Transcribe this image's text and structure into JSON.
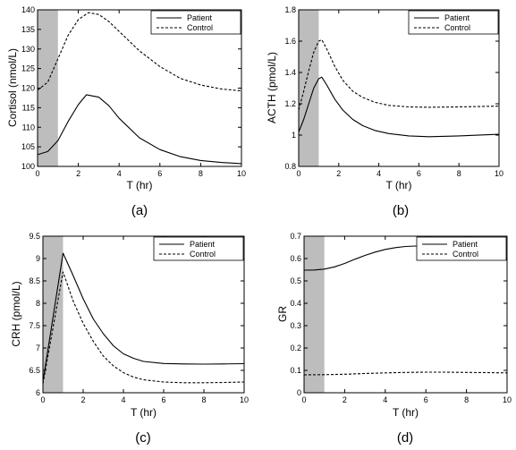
{
  "chart_data": [
    {
      "type": "line",
      "panel_label": "(a)",
      "xlabel": "T (hr)",
      "ylabel": "Cortisol (nmol/L)",
      "xlim": [
        0,
        10
      ],
      "ylim": [
        100,
        140
      ],
      "xticks": [
        0,
        2,
        4,
        6,
        8,
        10
      ],
      "yticks": [
        100,
        105,
        110,
        115,
        120,
        125,
        130,
        135,
        140
      ],
      "shaded_interval": [
        0,
        1
      ],
      "legend": "top-right",
      "grid": false,
      "series": [
        {
          "name": "Patient",
          "style": "solid",
          "x": [
            0,
            0.5,
            1,
            1.5,
            2,
            2.4,
            3,
            3.5,
            4,
            5,
            6,
            7,
            8,
            9,
            10
          ],
          "y": [
            103,
            103.8,
            106.6,
            111.5,
            115.8,
            118.3,
            117.7,
            115.5,
            112.3,
            107.3,
            104.3,
            102.5,
            101.5,
            101,
            100.7
          ]
        },
        {
          "name": "Control",
          "style": "dashed",
          "x": [
            0,
            0.5,
            1,
            1.5,
            2,
            2.5,
            3,
            3.5,
            4,
            5,
            6,
            7,
            8,
            9,
            10
          ],
          "y": [
            119.5,
            121.5,
            127.5,
            133.5,
            137.5,
            139.3,
            138.8,
            137,
            134.5,
            129.5,
            125.5,
            122.5,
            120.8,
            119.8,
            119.3
          ]
        }
      ]
    },
    {
      "type": "line",
      "panel_label": "(b)",
      "xlabel": "T (hr)",
      "ylabel": "ACTH (pmol/L)",
      "xlim": [
        0,
        10
      ],
      "ylim": [
        0.8,
        1.8
      ],
      "xticks": [
        0,
        2,
        4,
        6,
        8,
        10
      ],
      "yticks": [
        "0.8",
        "1",
        "1.2",
        "1.4",
        "1.6",
        "1.8"
      ],
      "shaded_interval": [
        0,
        1
      ],
      "legend": "top-right",
      "grid": false,
      "series": [
        {
          "name": "Patient",
          "style": "solid",
          "x": [
            0,
            0.25,
            0.5,
            0.75,
            1,
            1.15,
            1.4,
            1.8,
            2.2,
            2.7,
            3.2,
            3.8,
            4.5,
            5.5,
            6.5,
            8,
            10
          ],
          "y": [
            1.02,
            1.1,
            1.2,
            1.3,
            1.36,
            1.37,
            1.32,
            1.23,
            1.16,
            1.1,
            1.06,
            1.03,
            1.01,
            0.995,
            0.99,
            0.995,
            1.005
          ]
        },
        {
          "name": "Control",
          "style": "dashed",
          "x": [
            0,
            0.25,
            0.5,
            0.75,
            1,
            1.15,
            1.4,
            1.8,
            2.2,
            2.7,
            3.2,
            3.8,
            4.5,
            5.5,
            6.5,
            8,
            10
          ],
          "y": [
            1.16,
            1.28,
            1.41,
            1.53,
            1.6,
            1.61,
            1.55,
            1.44,
            1.35,
            1.28,
            1.24,
            1.21,
            1.19,
            1.18,
            1.178,
            1.18,
            1.185
          ]
        }
      ]
    },
    {
      "type": "line",
      "panel_label": "(c)",
      "xlabel": "T (hr)",
      "ylabel": "CRH (pmol/L)",
      "xlim": [
        0,
        10
      ],
      "ylim": [
        6,
        9.5
      ],
      "xticks": [
        0,
        2,
        4,
        6,
        8,
        10
      ],
      "yticks": [
        "6",
        "6.5",
        "7",
        "7.5",
        "8",
        "8.5",
        "9",
        "9.5"
      ],
      "shaded_interval": [
        0,
        1
      ],
      "legend": "top-right",
      "grid": false,
      "series": [
        {
          "name": "Patient",
          "style": "solid",
          "x": [
            0,
            1,
            1.5,
            2,
            2.5,
            3,
            3.5,
            4,
            4.5,
            5,
            6,
            7,
            8,
            9,
            10
          ],
          "y": [
            6.25,
            9.12,
            8.62,
            8.1,
            7.65,
            7.32,
            7.05,
            6.87,
            6.77,
            6.7,
            6.655,
            6.645,
            6.64,
            6.645,
            6.65
          ]
        },
        {
          "name": "Control",
          "style": "dashed",
          "x": [
            0,
            1,
            1.5,
            2,
            2.5,
            3,
            3.5,
            4,
            4.5,
            5,
            6,
            7,
            8,
            9,
            10
          ],
          "y": [
            6.2,
            8.7,
            8.05,
            7.55,
            7.15,
            6.82,
            6.6,
            6.45,
            6.35,
            6.29,
            6.24,
            6.225,
            6.225,
            6.23,
            6.24
          ]
        }
      ]
    },
    {
      "type": "line",
      "panel_label": "(d)",
      "xlabel": "T (hr)",
      "ylabel": "GR",
      "xlim": [
        0,
        10
      ],
      "ylim": [
        0,
        0.7
      ],
      "xticks": [
        0,
        2,
        4,
        6,
        8,
        10
      ],
      "yticks": [
        "0",
        "0.1",
        "0.2",
        "0.3",
        "0.4",
        "0.5",
        "0.6",
        "0.7"
      ],
      "shaded_interval": [
        0,
        1
      ],
      "legend": "top-right",
      "grid": false,
      "series": [
        {
          "name": "Patient",
          "style": "solid",
          "x": [
            0,
            0.5,
            1,
            1.5,
            2,
            2.5,
            3,
            3.5,
            4,
            4.5,
            5,
            5.5,
            6,
            7,
            8,
            9,
            10
          ],
          "y": [
            0.548,
            0.549,
            0.553,
            0.563,
            0.578,
            0.597,
            0.614,
            0.629,
            0.641,
            0.649,
            0.654,
            0.656,
            0.657,
            0.655,
            0.651,
            0.645,
            0.638
          ]
        },
        {
          "name": "Control",
          "style": "dashed",
          "x": [
            0,
            1,
            2,
            3,
            4,
            5,
            6,
            7,
            8,
            9,
            10
          ],
          "y": [
            0.08,
            0.081,
            0.083,
            0.086,
            0.089,
            0.091,
            0.092,
            0.092,
            0.091,
            0.09,
            0.089
          ]
        }
      ]
    }
  ]
}
